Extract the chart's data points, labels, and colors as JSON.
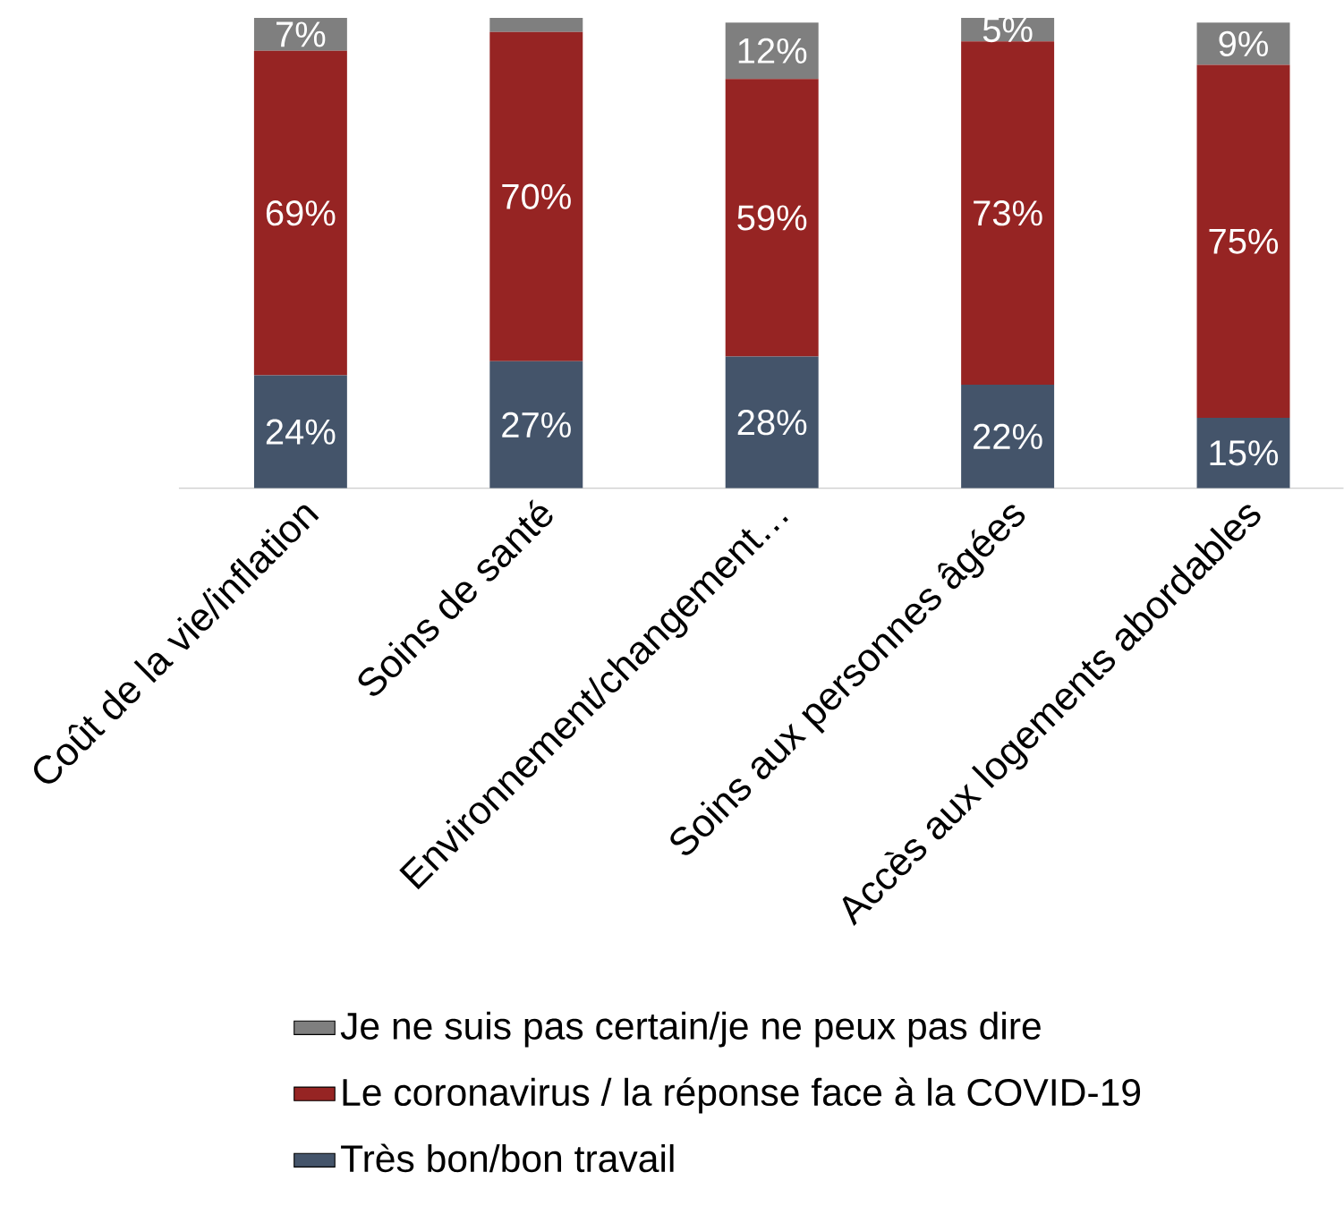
{
  "chart_data": {
    "type": "bar",
    "stacked": true,
    "categories": [
      "Coût de la vie/inflation",
      "Soins de santé",
      "Environnement/changement…",
      "Soins aux personnes âgées",
      "Accès aux logements abordables"
    ],
    "series": [
      {
        "name": "Très bon/bon travail",
        "color": "#44546a",
        "values": [
          24,
          27,
          28,
          22,
          15
        ],
        "value_labels": [
          "24%",
          "27%",
          "28%",
          "22%",
          "15%"
        ]
      },
      {
        "name": "Le coronavirus / la réponse face à la COVID-19",
        "color": "#962423",
        "values": [
          69,
          70,
          59,
          73,
          75
        ],
        "value_labels": [
          "69%",
          "70%",
          "59%",
          "73%",
          "75%"
        ]
      },
      {
        "name": "Je ne suis pas certain/je ne peux pas dire",
        "color": "#7f7f7f",
        "values": [
          7,
          3,
          12,
          5,
          9
        ],
        "value_labels": [
          "7%",
          null,
          "12%",
          "5%",
          "9%"
        ]
      }
    ],
    "tick_labels": "x",
    "legend": "bottom"
  }
}
